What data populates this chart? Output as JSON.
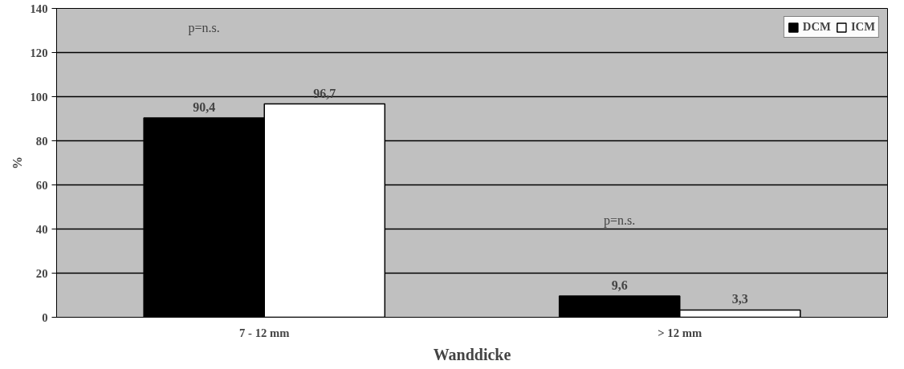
{
  "chart_data": {
    "type": "bar",
    "xlabel": "Wanddicke",
    "ylabel": "%",
    "categories": [
      "7 - 12 mm",
      "> 12 mm"
    ],
    "series": [
      {
        "name": "DCM",
        "color": "#000000",
        "values": [
          90.4,
          9.6
        ],
        "value_labels": [
          "90,4",
          "9,6"
        ]
      },
      {
        "name": "ICM",
        "color": "#ffffff",
        "values": [
          96.7,
          3.3
        ],
        "value_labels": [
          "96,7",
          "3,3"
        ]
      }
    ],
    "ylim": [
      0,
      140
    ],
    "yticks": [
      0,
      20,
      40,
      60,
      80,
      100,
      120,
      140
    ],
    "grid": "y",
    "legend": "top right",
    "annotations": [
      "p=n.s.",
      "p=n.s."
    ]
  }
}
